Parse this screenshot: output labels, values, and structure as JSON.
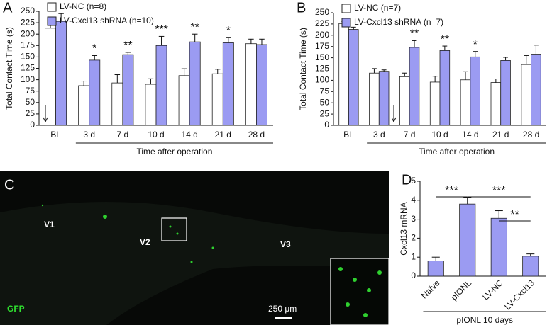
{
  "chart_data": [
    {
      "type": "bar",
      "panel": "A",
      "y_label": "Total Contact Time (s)",
      "x_label": "Time after operation",
      "categories": [
        "BL",
        "3 d",
        "7 d",
        "10 d",
        "14 d",
        "21 d",
        "28 d"
      ],
      "series": [
        {
          "name": "LV-NC (n=8)",
          "color": "#ffffff",
          "values": [
            213,
            87,
            93,
            90,
            109,
            113,
            179
          ],
          "errors": [
            8,
            10,
            18,
            12,
            15,
            10,
            10
          ]
        },
        {
          "name": "LV-Cxcl13 shRNA (n=10)",
          "color": "#9b9bf2",
          "values": [
            228,
            143,
            155,
            175,
            183,
            181,
            177
          ],
          "errors": [
            17,
            10,
            5,
            20,
            17,
            12,
            12
          ]
        }
      ],
      "significance": [
        null,
        "*",
        "**",
        "***",
        "**",
        "*",
        null
      ],
      "ylim": [
        0,
        250
      ],
      "yticks": [
        0,
        25,
        50,
        75,
        100,
        125,
        150,
        175,
        200,
        225,
        250
      ],
      "legend": "upper left"
    },
    {
      "type": "bar",
      "panel": "B",
      "y_label": "Total Contact Time (s)",
      "x_label": "Time after operation",
      "categories": [
        "BL",
        "3 d",
        "7 d",
        "10 d",
        "14 d",
        "21 d",
        "28 d"
      ],
      "series": [
        {
          "name": "LV-NC (n=7)",
          "color": "#ffffff",
          "values": [
            226,
            116,
            108,
            96,
            101,
            95,
            135
          ],
          "errors": [
            5,
            10,
            8,
            13,
            18,
            8,
            20
          ]
        },
        {
          "name": "LV-Cxcl13 shRNA (n=7)",
          "color": "#9b9bf2",
          "values": [
            213,
            120,
            173,
            166,
            152,
            144,
            158
          ],
          "errors": [
            5,
            3,
            15,
            10,
            12,
            7,
            20
          ]
        }
      ],
      "significance": [
        null,
        null,
        "**",
        "**",
        "*",
        null,
        null
      ],
      "ylim": [
        0,
        250
      ],
      "yticks": [
        0,
        25,
        50,
        75,
        100,
        125,
        150,
        175,
        200,
        225,
        250
      ],
      "legend": "upper left"
    },
    {
      "type": "bar",
      "panel": "D",
      "y_label": "Cxcl13 mRNA",
      "x_label": "pIONL 10 days",
      "categories": [
        "Naïve",
        "pIONL",
        "LV-NC",
        "LV-Cxcl13"
      ],
      "series": [
        {
          "color": "#9b9bf2",
          "values": [
            0.8,
            3.8,
            3.05,
            1.05
          ],
          "errors": [
            0.2,
            0.35,
            0.4,
            0.12
          ]
        }
      ],
      "comparisons": [
        {
          "between": [
            "Naïve",
            "pIONL"
          ],
          "label": "***"
        },
        {
          "between": [
            "pIONL",
            "LV-Cxcl13"
          ],
          "label": "***"
        },
        {
          "between": [
            "LV-NC",
            "LV-Cxcl13"
          ],
          "label": "**"
        }
      ],
      "x_label_rotation": -45,
      "ylim": [
        0,
        5
      ],
      "yticks": [
        0,
        1,
        2,
        3,
        4,
        5
      ]
    }
  ],
  "image_panel": {
    "panel": "C",
    "regions": [
      "V1",
      "V2",
      "V3"
    ],
    "stain": "GFP",
    "scale_bar": "250 μm"
  }
}
